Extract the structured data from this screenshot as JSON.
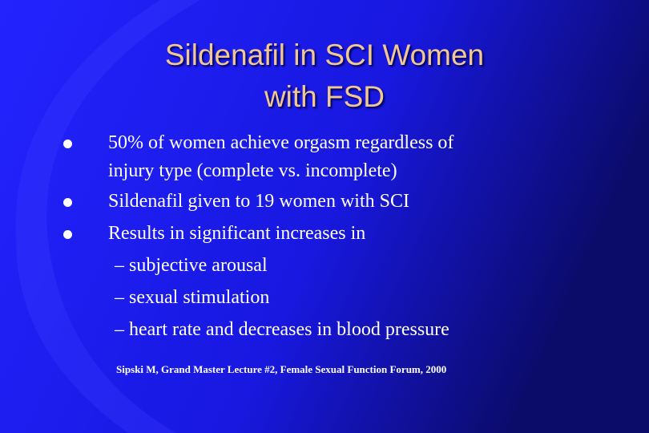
{
  "slide": {
    "title": {
      "lines": [
        "Sildenafil in SCI Women",
        "with FSD"
      ]
    },
    "bullets": [
      {
        "lines": [
          "50% of women achieve orgasm regardless of",
          "injury type (complete vs. incomplete)"
        ]
      },
      {
        "lines": [
          "Sildenafil given to 19 women with SCI"
        ]
      },
      {
        "lines": [
          "Results in significant increases in"
        ],
        "subitems": [
          "– subjective arousal",
          "– sexual stimulation",
          "– heart rate and decreases in blood pressure"
        ]
      }
    ],
    "citation": "Sipski M, Grand Master Lecture #2, Female Sexual Function Forum, 2000"
  }
}
